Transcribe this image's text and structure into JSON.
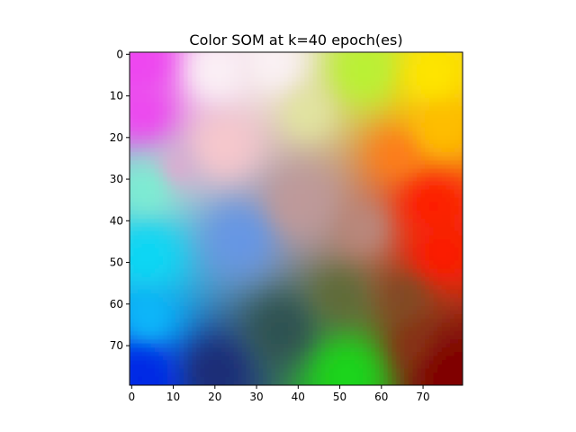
{
  "chart_data": {
    "type": "heatmap",
    "title": "Color SOM at k=40 epoch(es)",
    "xlabel": "",
    "ylabel": "",
    "grid_size": [
      80,
      80
    ],
    "xlim": [
      -0.5,
      79.5
    ],
    "ylim": [
      79.5,
      -0.5
    ],
    "x_ticks": [
      0,
      10,
      20,
      30,
      40,
      50,
      60,
      70
    ],
    "y_ticks": [
      0,
      10,
      20,
      30,
      40,
      50,
      60,
      70
    ],
    "grid": false,
    "colors": {
      "top_left": "#ee44f0",
      "top_center": "#fbf2f6",
      "top_right": "#ffe600",
      "upper_mid_right": "#b8f233",
      "center": "#bf9999",
      "right_middle": "#ff1a00",
      "left_middle": "#0ad8f5",
      "bottom_left": "#0026e6",
      "bottom_center": "#1ad81a",
      "bottom_right": "#800000"
    }
  }
}
